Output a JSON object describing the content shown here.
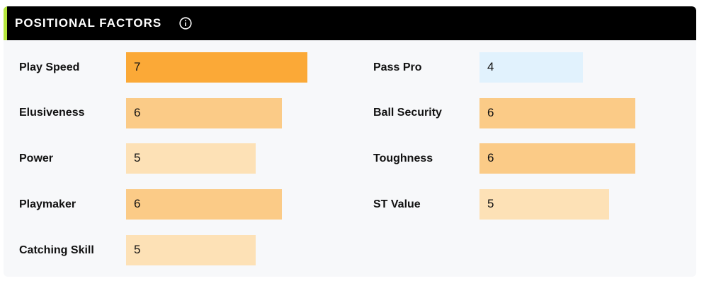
{
  "header": {
    "title": "POSITIONAL FACTORS",
    "info_icon": "info-icon",
    "accent_color": "#b6e63e"
  },
  "scale_max": 10,
  "colors": {
    "level_7": "#fba937",
    "level_6": "#fbcb87",
    "level_5": "#fde1b6",
    "level_4": "#e1f2fd"
  },
  "left": [
    {
      "label": "Play Speed",
      "value": "7"
    },
    {
      "label": "Elusiveness",
      "value": "6"
    },
    {
      "label": "Power",
      "value": "5"
    },
    {
      "label": "Playmaker",
      "value": "6"
    },
    {
      "label": "Catching Skill",
      "value": "5"
    }
  ],
  "right": [
    {
      "label": "Pass Pro",
      "value": "4"
    },
    {
      "label": "Ball Security",
      "value": "6"
    },
    {
      "label": "Toughness",
      "value": "6"
    },
    {
      "label": "ST Value",
      "value": "5"
    }
  ]
}
